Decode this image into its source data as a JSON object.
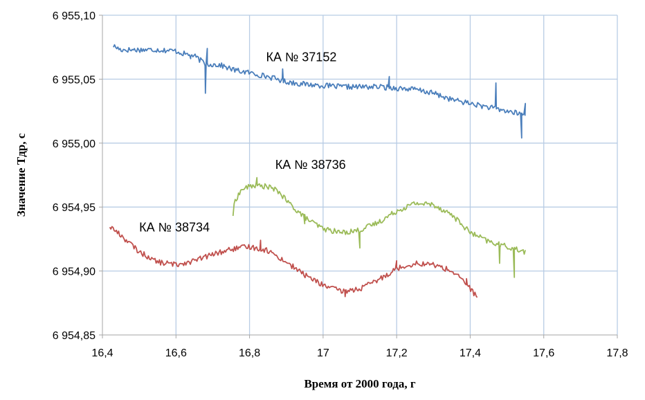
{
  "chart_data": {
    "type": "line",
    "title": "",
    "xlabel": "Время от 2000 года, г",
    "ylabel": "Значение Тдр, с",
    "xlim": [
      16.4,
      17.8
    ],
    "ylim": [
      6954.85,
      6955.1
    ],
    "x_ticks": [
      16.4,
      16.6,
      16.8,
      17.0,
      17.2,
      17.4,
      17.6,
      17.8
    ],
    "x_tick_labels": [
      "16,4",
      "16,6",
      "16,8",
      "17",
      "17,2",
      "17,4",
      "17,6",
      "17,8"
    ],
    "y_ticks": [
      6954.85,
      6954.9,
      6954.95,
      6955.0,
      6955.05,
      6955.1
    ],
    "y_tick_labels": [
      "6 954,85",
      "6 954,90",
      "6 954,95",
      "6 955,00",
      "6 955,05",
      "6 955,10"
    ],
    "grid": true,
    "legend": "none",
    "series": [
      {
        "name": "КА № 37152",
        "color": "#4a7ebb",
        "points": [
          [
            16.43,
            6955.076
          ],
          [
            16.45,
            6955.073
          ],
          [
            16.5,
            6955.073
          ],
          [
            16.55,
            6955.073
          ],
          [
            16.6,
            6955.072
          ],
          [
            16.62,
            6955.07
          ],
          [
            16.65,
            6955.068
          ],
          [
            16.68,
            6955.062
          ],
          [
            16.72,
            6955.061
          ],
          [
            16.76,
            6955.057
          ],
          [
            16.8,
            6955.055
          ],
          [
            16.85,
            6955.052
          ],
          [
            16.9,
            6955.048
          ],
          [
            16.95,
            6955.046
          ],
          [
            17.0,
            6955.045
          ],
          [
            17.05,
            6955.044
          ],
          [
            17.1,
            6955.044
          ],
          [
            17.15,
            6955.044
          ],
          [
            17.2,
            6955.043
          ],
          [
            17.25,
            6955.042
          ],
          [
            17.3,
            6955.039
          ],
          [
            17.35,
            6955.034
          ],
          [
            17.4,
            6955.031
          ],
          [
            17.45,
            6955.028
          ],
          [
            17.5,
            6955.025
          ],
          [
            17.55,
            6955.022
          ]
        ],
        "spikes": [
          [
            16.64,
            6955.066
          ],
          [
            16.68,
            6955.039
          ],
          [
            16.685,
            6955.074
          ],
          [
            16.89,
            6955.058
          ],
          [
            17.18,
            6955.052
          ],
          [
            17.47,
            6955.047
          ],
          [
            17.54,
            6955.004
          ],
          [
            17.55,
            6955.031
          ]
        ]
      },
      {
        "name": "КА № 38736",
        "color": "#9bbb59",
        "points": [
          [
            16.755,
            6954.944
          ],
          [
            16.76,
            6954.955
          ],
          [
            16.78,
            6954.964
          ],
          [
            16.81,
            6954.967
          ],
          [
            16.85,
            6954.966
          ],
          [
            16.88,
            6954.962
          ],
          [
            16.9,
            6954.955
          ],
          [
            16.93,
            6954.947
          ],
          [
            16.96,
            6954.94
          ],
          [
            17.0,
            6954.933
          ],
          [
            17.05,
            6954.93
          ],
          [
            17.1,
            6954.932
          ],
          [
            17.15,
            6954.938
          ],
          [
            17.2,
            6954.947
          ],
          [
            17.25,
            6954.953
          ],
          [
            17.3,
            6954.952
          ],
          [
            17.35,
            6954.944
          ],
          [
            17.4,
            6954.93
          ],
          [
            17.45,
            6954.923
          ],
          [
            17.5,
            6954.919
          ],
          [
            17.55,
            6954.915
          ]
        ],
        "spikes": [
          [
            16.82,
            6954.973
          ],
          [
            16.95,
            6954.937
          ],
          [
            17.1,
            6954.918
          ],
          [
            17.48,
            6954.906
          ],
          [
            17.52,
            6954.895
          ]
        ]
      },
      {
        "name": "КА № 38734",
        "color": "#c0504d",
        "points": [
          [
            16.42,
            6954.935
          ],
          [
            16.45,
            6954.928
          ],
          [
            16.5,
            6954.915
          ],
          [
            16.55,
            6954.907
          ],
          [
            16.6,
            6954.905
          ],
          [
            16.65,
            6954.908
          ],
          [
            16.7,
            6954.913
          ],
          [
            16.75,
            6954.917
          ],
          [
            16.8,
            6954.919
          ],
          [
            16.85,
            6954.916
          ],
          [
            16.9,
            6954.907
          ],
          [
            16.95,
            6954.897
          ],
          [
            17.0,
            6954.889
          ],
          [
            17.05,
            6954.884
          ],
          [
            17.1,
            6954.886
          ],
          [
            17.15,
            6954.893
          ],
          [
            17.2,
            6954.902
          ],
          [
            17.25,
            6954.906
          ],
          [
            17.3,
            6954.905
          ],
          [
            17.35,
            6954.9
          ],
          [
            17.39,
            6954.89
          ],
          [
            17.42,
            6954.879
          ]
        ],
        "spikes": [
          [
            16.83,
            6954.924
          ],
          [
            17.06,
            6954.88
          ],
          [
            17.2,
            6954.908
          ],
          [
            17.39,
            6954.894
          ]
        ]
      }
    ]
  }
}
